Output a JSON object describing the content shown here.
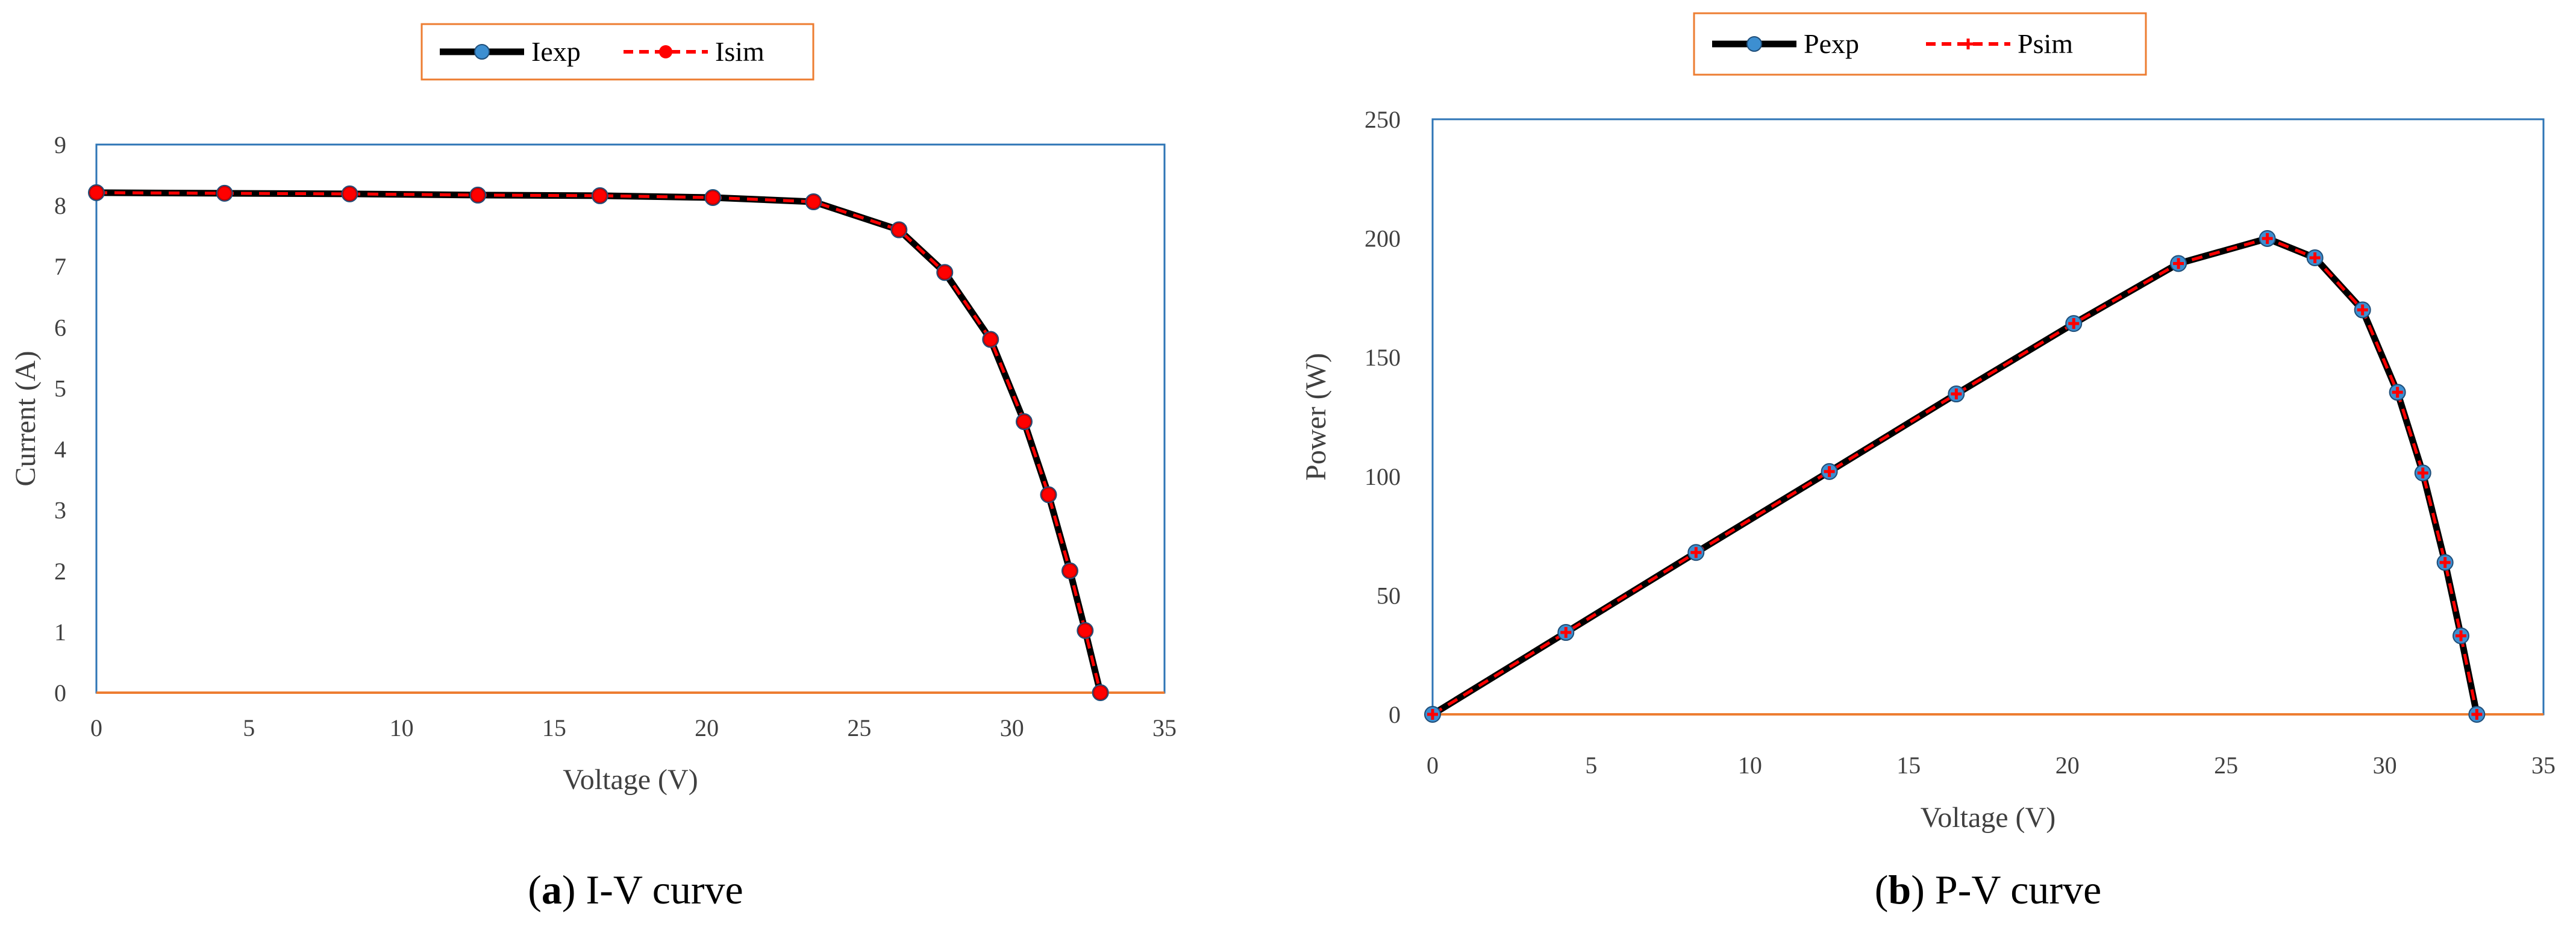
{
  "chart_data": [
    {
      "type": "line",
      "panel_letter": "a",
      "title": "I-V curve",
      "xlabel": "Voltage (V)",
      "ylabel": "Current (A)",
      "xlim": [
        0,
        35
      ],
      "ylim": [
        0,
        9
      ],
      "xticks": [
        0,
        5,
        10,
        15,
        20,
        25,
        30,
        35
      ],
      "yticks": [
        0,
        1,
        2,
        3,
        4,
        5,
        6,
        7,
        8,
        9
      ],
      "grid": false,
      "legend_position": "top-center",
      "series": [
        {
          "name": "Iexp",
          "style": "solid",
          "color": "#000000",
          "marker_color": "#3d8fd1",
          "x": [
            0,
            4.2,
            8.3,
            12.5,
            16.5,
            20.2,
            23.5,
            26.3,
            27.8,
            29.3,
            30.4,
            31.2,
            31.9,
            32.4,
            32.9
          ],
          "y": [
            8.21,
            8.2,
            8.19,
            8.17,
            8.16,
            8.13,
            8.06,
            7.6,
            6.9,
            5.8,
            4.45,
            3.25,
            2.0,
            1.02,
            0
          ]
        },
        {
          "name": "Isim",
          "style": "dashed",
          "color": "#ff0000",
          "marker_color": "#ff0000",
          "x": [
            0,
            4.2,
            8.3,
            12.5,
            16.5,
            20.2,
            23.5,
            26.3,
            27.8,
            29.3,
            30.4,
            31.2,
            31.9,
            32.4,
            32.9
          ],
          "y": [
            8.21,
            8.2,
            8.19,
            8.17,
            8.16,
            8.13,
            8.06,
            7.6,
            6.9,
            5.8,
            4.45,
            3.25,
            2.0,
            1.02,
            0
          ]
        }
      ]
    },
    {
      "type": "line",
      "panel_letter": "b",
      "title": "P-V curve",
      "xlabel": "Voltage (V)",
      "ylabel": "Power (W)",
      "xlim": [
        0,
        35
      ],
      "ylim": [
        0,
        250
      ],
      "xticks": [
        0,
        5,
        10,
        15,
        20,
        25,
        30,
        35
      ],
      "yticks": [
        0,
        50,
        100,
        150,
        200,
        250
      ],
      "grid": false,
      "legend_position": "top-center",
      "series": [
        {
          "name": "Pexp",
          "style": "solid",
          "color": "#000000",
          "marker_color": "#3d8fd1",
          "x": [
            0,
            4.2,
            8.3,
            12.5,
            16.5,
            20.2,
            23.5,
            26.3,
            27.8,
            29.3,
            30.4,
            31.2,
            31.9,
            32.4,
            32.9
          ],
          "y": [
            0,
            34.4,
            68,
            102,
            134.6,
            164.2,
            189.4,
            199.9,
            191.8,
            169.9,
            135.3,
            101.4,
            63.8,
            33,
            0
          ]
        },
        {
          "name": "Psim",
          "style": "dashed",
          "color": "#ff0000",
          "marker_color": "#ff0000",
          "x": [
            0,
            4.2,
            8.3,
            12.5,
            16.5,
            20.2,
            23.5,
            26.3,
            27.8,
            29.3,
            30.4,
            31.2,
            31.9,
            32.4,
            32.9
          ],
          "y": [
            0,
            34.4,
            68,
            102,
            134.6,
            164.2,
            189.4,
            199.9,
            191.8,
            169.9,
            135.3,
            101.4,
            63.8,
            33,
            0
          ]
        }
      ]
    }
  ]
}
